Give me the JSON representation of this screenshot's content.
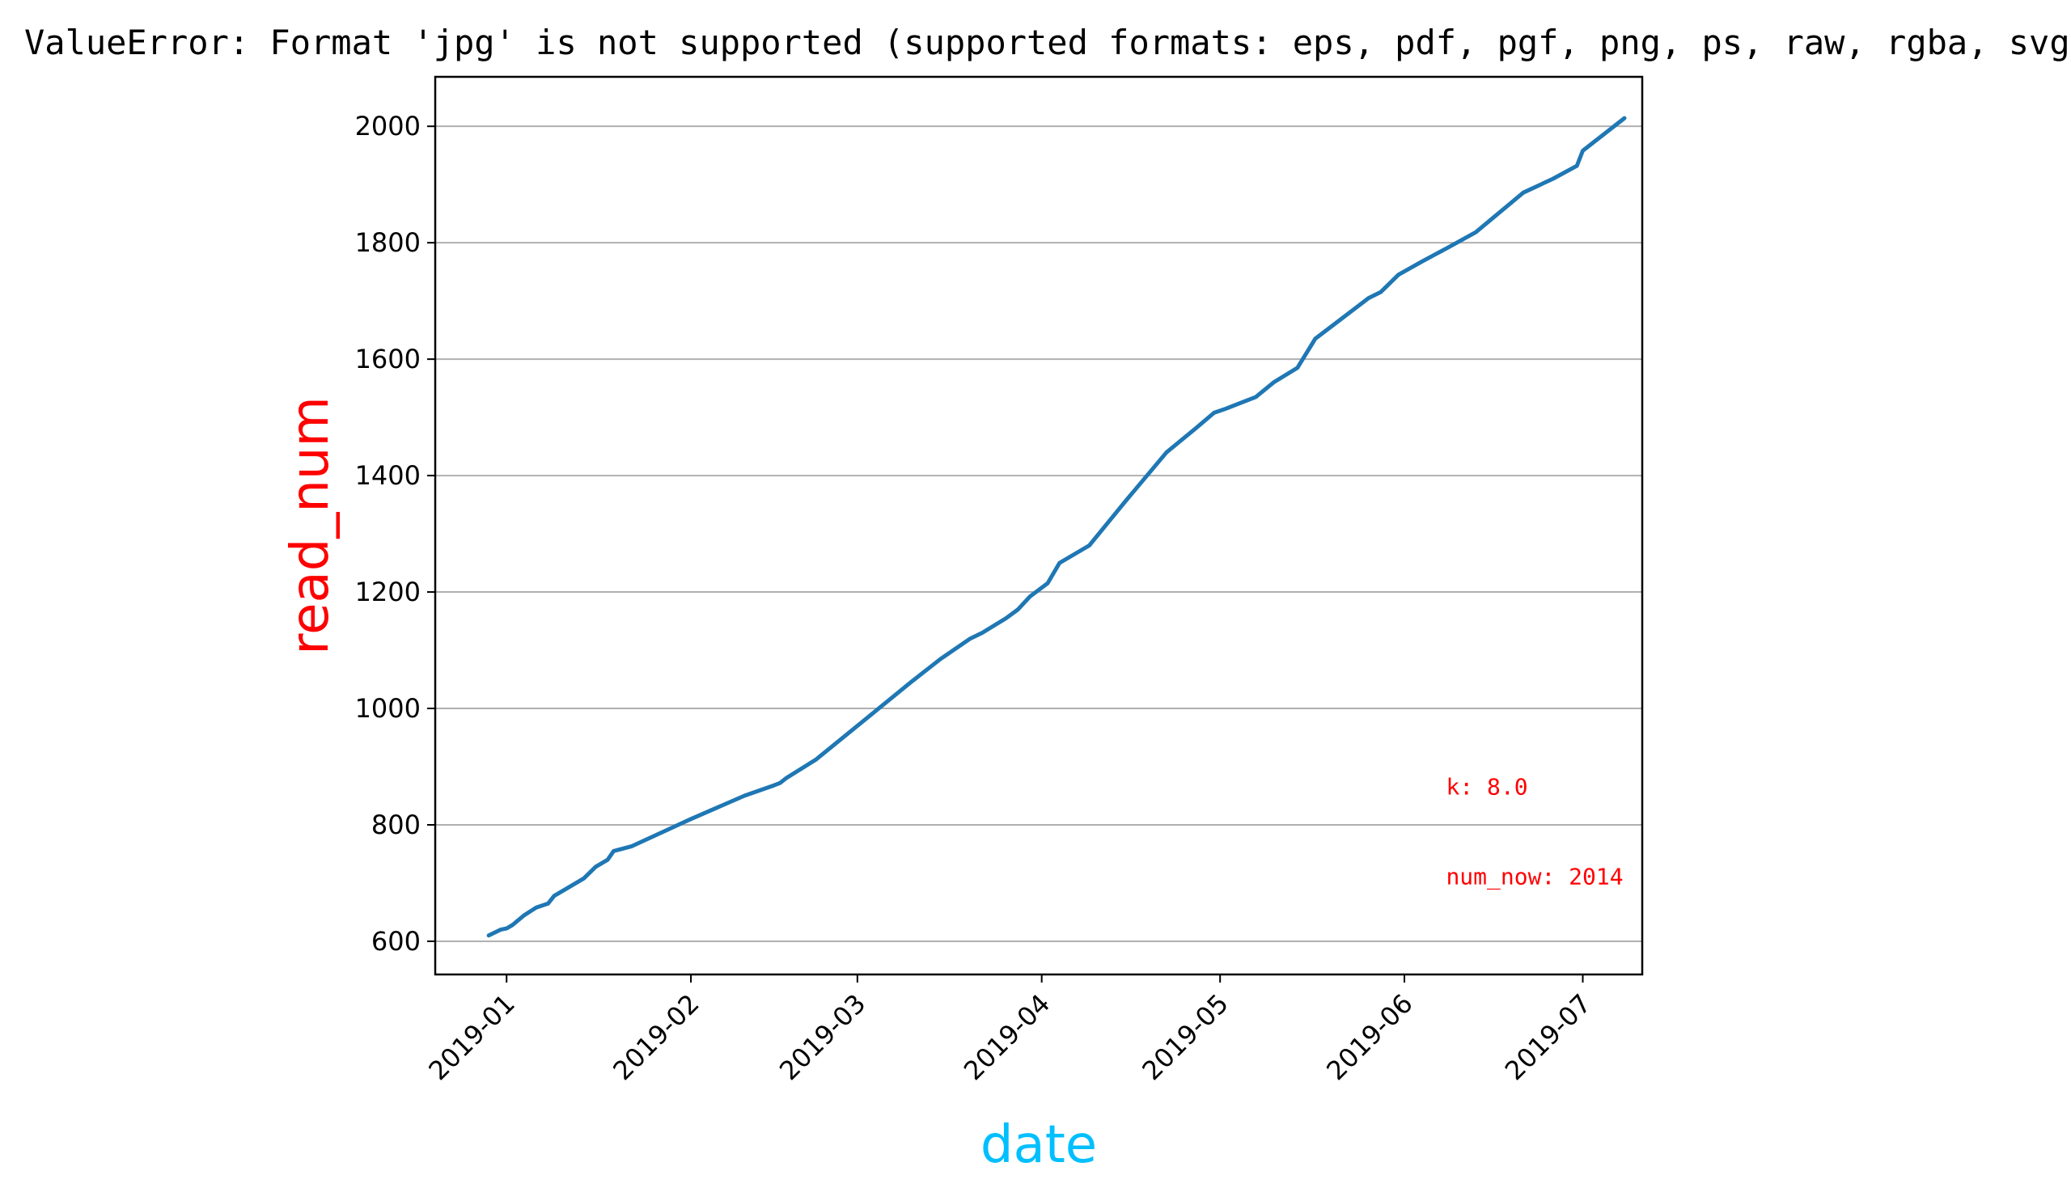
{
  "error_message": "ValueError: Format 'jpg' is not supported (supported formats: eps, pdf, pgf, png, ps, raw, rgba, svg",
  "colors": {
    "line": "#1f77b4",
    "ylabel": "#ff0000",
    "xlabel": "#00bfff",
    "annotation": "#ff0000",
    "grid": "#b0b0b0",
    "axes": "#000000",
    "error_text": "#000000"
  },
  "chart_data": {
    "type": "line",
    "title": "",
    "xlabel": "date",
    "ylabel": "read_num",
    "grid": "y-axis horizontal lines",
    "legend": "none",
    "xlim": [
      "2018-12-20",
      "2019-07-11"
    ],
    "ylim": [
      543,
      2085
    ],
    "x_ticks": [
      "2019-01",
      "2019-02",
      "2019-03",
      "2019-04",
      "2019-05",
      "2019-06",
      "2019-07"
    ],
    "y_ticks": [
      "600",
      "800",
      "1000",
      "1200",
      "1400",
      "1600",
      "1800",
      "2000"
    ],
    "annotations": [
      {
        "text": "k: 8.0",
        "at": [
          "2019-06-08",
          852
        ]
      },
      {
        "text": "num_now: 2014",
        "at": [
          "2019-06-08",
          698
        ]
      }
    ],
    "series": [
      {
        "x": [
          "2018-12-29",
          "2018-12-31",
          "2019-01-01",
          "2019-01-02",
          "2019-01-04",
          "2019-01-06",
          "2019-01-08",
          "2019-01-09",
          "2019-01-11",
          "2019-01-14",
          "2019-01-16",
          "2019-01-18",
          "2019-01-19",
          "2019-01-22",
          "2019-02-01",
          "2019-02-10",
          "2019-02-15",
          "2019-02-16",
          "2019-02-17",
          "2019-02-22",
          "2019-03-01",
          "2019-03-10",
          "2019-03-15",
          "2019-03-20",
          "2019-03-22",
          "2019-03-26",
          "2019-03-28",
          "2019-03-30",
          "2019-04-02",
          "2019-04-04",
          "2019-04-09",
          "2019-04-15",
          "2019-04-22",
          "2019-04-27",
          "2019-04-30",
          "2019-05-02",
          "2019-05-07",
          "2019-05-10",
          "2019-05-14",
          "2019-05-17",
          "2019-05-26",
          "2019-05-28",
          "2019-05-31",
          "2019-06-04",
          "2019-06-08",
          "2019-06-13",
          "2019-06-17",
          "2019-06-21",
          "2019-06-26",
          "2019-06-30",
          "2019-07-01",
          "2019-07-08"
        ],
        "y": [
          610,
          620,
          622,
          628,
          645,
          658,
          665,
          678,
          690,
          708,
          728,
          740,
          755,
          763,
          810,
          850,
          868,
          872,
          880,
          912,
          970,
          1045,
          1085,
          1120,
          1130,
          1155,
          1170,
          1192,
          1215,
          1250,
          1280,
          1355,
          1440,
          1482,
          1508,
          1515,
          1535,
          1560,
          1585,
          1635,
          1705,
          1715,
          1745,
          1768,
          1790,
          1818,
          1852,
          1886,
          1910,
          1932,
          1958,
          2014
        ]
      }
    ]
  }
}
